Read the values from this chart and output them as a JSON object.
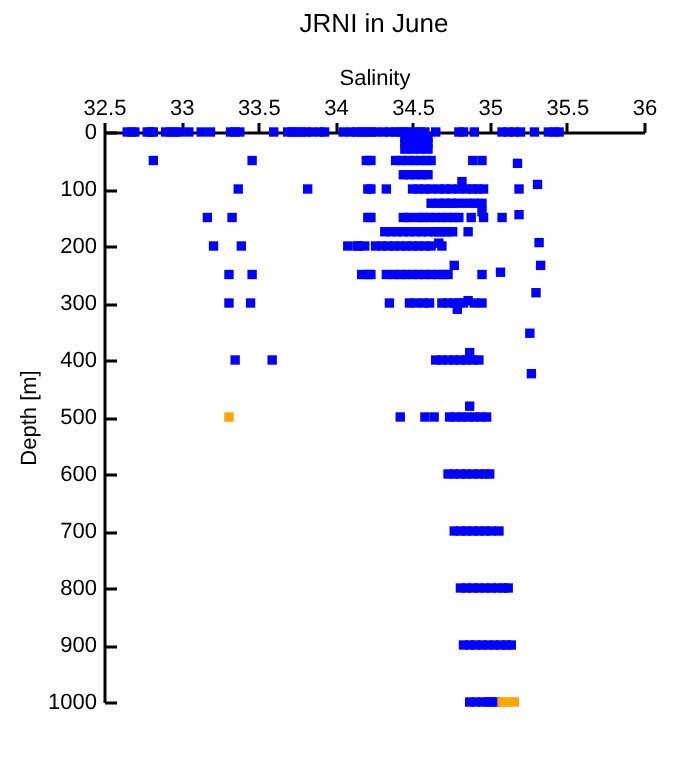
{
  "chart_data": {
    "type": "scatter",
    "title": "JRNI in June",
    "xlabel": "Salinity",
    "ylabel": "Depth [m]",
    "xlim": [
      32.5,
      36
    ],
    "xticks": [
      32.5,
      33,
      33.5,
      34,
      34.5,
      35,
      35.5,
      36
    ],
    "ylim": [
      1000,
      0
    ],
    "yticks": [
      0,
      100,
      200,
      300,
      400,
      500,
      600,
      700,
      800,
      900,
      1000
    ],
    "grid": false,
    "legend": false,
    "marker": "square",
    "series": [
      {
        "color": "#0000ff",
        "x": [
          32.65,
          32.68,
          32.7,
          32.78,
          32.8,
          32.82,
          32.9,
          32.93,
          32.96,
          32.99,
          33.05,
          33.13,
          33.19,
          33.32,
          33.35,
          33.38,
          33.6,
          33.69,
          33.72,
          33.75,
          33.78,
          33.81,
          33.85,
          33.9,
          33.93,
          34.05,
          34.1,
          34.14,
          34.17,
          34.2,
          34.23,
          34.26,
          34.31,
          34.35,
          34.39,
          34.42,
          34.45,
          34.48,
          34.52,
          34.55,
          34.58,
          34.65,
          34.8,
          34.83,
          34.9,
          35.08,
          35.12,
          35.16,
          35.2,
          35.29,
          35.38,
          35.42,
          35.45,
          34.45,
          34.5,
          34.55,
          34.6,
          34.45,
          34.5,
          34.55,
          34.6,
          34.45,
          34.5,
          34.55,
          34.6,
          32.82,
          33.46,
          34.2,
          34.23,
          34.39,
          34.43,
          34.47,
          34.51,
          34.55,
          34.59,
          34.62,
          34.89,
          34.95,
          35.18,
          34.44,
          34.48,
          34.52,
          34.56,
          34.6,
          34.82,
          33.37,
          33.82,
          34.21,
          34.23,
          34.33,
          34.5,
          34.54,
          34.58,
          34.62,
          34.67,
          34.71,
          34.75,
          34.8,
          34.85,
          34.89,
          34.92,
          34.96,
          35.19,
          35.31,
          34.62,
          34.67,
          34.71,
          34.75,
          34.79,
          34.85,
          34.9,
          34.95,
          33.17,
          33.33,
          34.21,
          34.23,
          34.44,
          34.48,
          34.54,
          34.57,
          34.61,
          34.65,
          34.69,
          34.73,
          34.77,
          34.8,
          34.88,
          34.96,
          35.08,
          35.19,
          34.95,
          34.32,
          34.36,
          34.4,
          34.44,
          34.48,
          34.52,
          34.56,
          34.6,
          34.64,
          34.67,
          34.7,
          34.73,
          34.76,
          34.86,
          33.21,
          33.39,
          34.08,
          34.15,
          34.14,
          34.19,
          34.26,
          34.3,
          34.34,
          34.38,
          34.42,
          34.46,
          34.5,
          34.54,
          34.58,
          34.62,
          34.69,
          34.67,
          35.32,
          33.31,
          33.46,
          34.17,
          34.21,
          34.23,
          34.33,
          34.38,
          34.42,
          34.46,
          34.5,
          34.54,
          34.58,
          34.62,
          34.66,
          34.7,
          34.73,
          34.95,
          35.07,
          35.33,
          34.77,
          33.31,
          33.45,
          34.35,
          34.48,
          34.52,
          34.57,
          34.61,
          34.69,
          34.73,
          34.77,
          34.8,
          34.83,
          34.9,
          34.95,
          34.79,
          34.86,
          35.3,
          35.26,
          35.27,
          33.35,
          33.59,
          34.65,
          34.69,
          34.73,
          34.77,
          34.81,
          34.85,
          34.89,
          34.93,
          34.87,
          34.42,
          34.58,
          34.64,
          34.74,
          34.78,
          34.82,
          34.86,
          34.9,
          34.94,
          34.98,
          34.87,
          34.73,
          34.77,
          34.81,
          34.85,
          34.89,
          34.93,
          34.97,
          35.0,
          34.77,
          34.81,
          34.85,
          34.89,
          34.93,
          34.97,
          35.01,
          35.06,
          34.81,
          34.85,
          34.89,
          34.93,
          34.97,
          35.01,
          35.05,
          35.09,
          35.12,
          34.83,
          34.87,
          34.91,
          34.95,
          34.99,
          35.03,
          35.07,
          35.11,
          35.14,
          34.87,
          34.91,
          34.95,
          34.99,
          35.01,
          35.04
        ],
        "values": [
          0,
          0,
          0,
          0,
          0,
          0,
          0,
          0,
          0,
          0,
          0,
          0,
          0,
          0,
          0,
          0,
          0,
          0,
          0,
          0,
          0,
          0,
          0,
          0,
          0,
          0,
          0,
          0,
          0,
          0,
          0,
          0,
          0,
          0,
          0,
          0,
          0,
          0,
          0,
          0,
          0,
          0,
          0,
          0,
          0,
          0,
          0,
          0,
          0,
          0,
          0,
          0,
          0,
          10,
          10,
          10,
          10,
          20,
          20,
          20,
          20,
          30,
          30,
          30,
          30,
          50,
          50,
          50,
          50,
          50,
          50,
          50,
          50,
          50,
          50,
          50,
          50,
          50,
          55,
          75,
          75,
          75,
          75,
          75,
          87,
          100,
          100,
          100,
          100,
          100,
          100,
          100,
          100,
          100,
          100,
          100,
          100,
          100,
          100,
          100,
          100,
          100,
          100,
          92,
          125,
          125,
          125,
          125,
          125,
          125,
          125,
          125,
          150,
          150,
          150,
          150,
          150,
          150,
          150,
          150,
          150,
          150,
          150,
          150,
          150,
          150,
          150,
          150,
          150,
          145,
          140,
          175,
          175,
          175,
          175,
          175,
          175,
          175,
          175,
          175,
          175,
          175,
          175,
          175,
          175,
          200,
          200,
          200,
          200,
          200,
          200,
          200,
          200,
          200,
          200,
          200,
          200,
          200,
          200,
          200,
          200,
          200,
          195,
          194,
          250,
          250,
          250,
          250,
          250,
          250,
          250,
          250,
          250,
          250,
          250,
          250,
          250,
          250,
          250,
          250,
          250,
          246,
          234,
          234,
          300,
          300,
          300,
          300,
          300,
          300,
          300,
          300,
          300,
          300,
          300,
          300,
          300,
          300,
          311,
          296,
          282,
          353,
          424,
          400,
          400,
          400,
          400,
          400,
          400,
          400,
          400,
          400,
          400,
          387,
          500,
          500,
          500,
          500,
          500,
          500,
          500,
          500,
          500,
          500,
          481,
          600,
          600,
          600,
          600,
          600,
          600,
          600,
          600,
          700,
          700,
          700,
          700,
          700,
          700,
          700,
          700,
          800,
          800,
          800,
          800,
          800,
          800,
          800,
          800,
          800,
          900,
          900,
          900,
          900,
          900,
          900,
          900,
          900,
          900,
          1000,
          1000,
          1000,
          1000,
          1000,
          1000
        ]
      },
      {
        "color": "#ffa500",
        "x": [
          33.31,
          35.08,
          35.12,
          35.16
        ],
        "values": [
          500,
          1000,
          1000,
          1000
        ]
      }
    ]
  }
}
